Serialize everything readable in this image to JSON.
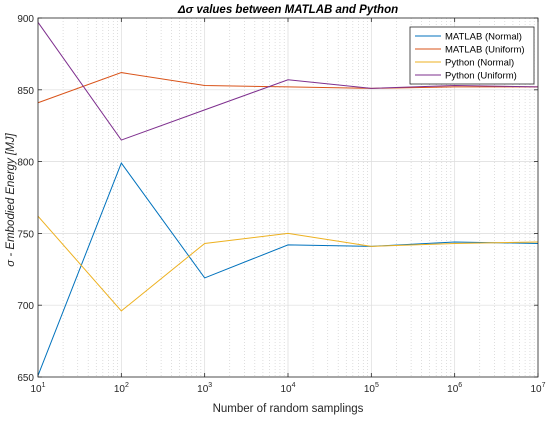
{
  "chart_data": {
    "type": "line",
    "title": "Δσ values between MATLAB and Python",
    "xlabel": "Number of random samplings",
    "ylabel": "σ - Embodied Energy [MJ]",
    "xscale": "log",
    "xlim": [
      10,
      10000000
    ],
    "ylim": [
      650,
      900
    ],
    "yticks": [
      650,
      700,
      750,
      800,
      850,
      900
    ],
    "xticks": [
      {
        "value": 10,
        "base": "10",
        "exp": "1"
      },
      {
        "value": 100,
        "base": "10",
        "exp": "2"
      },
      {
        "value": 1000,
        "base": "10",
        "exp": "3"
      },
      {
        "value": 10000,
        "base": "10",
        "exp": "4"
      },
      {
        "value": 100000,
        "base": "10",
        "exp": "5"
      },
      {
        "value": 1000000,
        "base": "10",
        "exp": "6"
      },
      {
        "value": 10000000,
        "base": "10",
        "exp": "7"
      }
    ],
    "grid": true,
    "minor_grid": true,
    "legend_position": "top-right",
    "x": [
      10,
      100,
      1000,
      10000,
      100000,
      1000000,
      10000000
    ],
    "series": [
      {
        "name": "MATLAB (Normal)",
        "color": "#0072BD",
        "values": [
          651,
          799,
          719,
          742,
          741,
          744,
          743
        ]
      },
      {
        "name": "MATLAB (Uniform)",
        "color": "#D95319",
        "values": [
          841,
          862,
          853,
          852,
          851,
          852,
          852
        ]
      },
      {
        "name": "Python (Normal)",
        "color": "#EDB120",
        "values": [
          762,
          696,
          743,
          750,
          741,
          743,
          744
        ]
      },
      {
        "name": "Python (Uniform)",
        "color": "#7E2F8E",
        "values": [
          897,
          815,
          836,
          857,
          851,
          853,
          852
        ]
      }
    ]
  }
}
